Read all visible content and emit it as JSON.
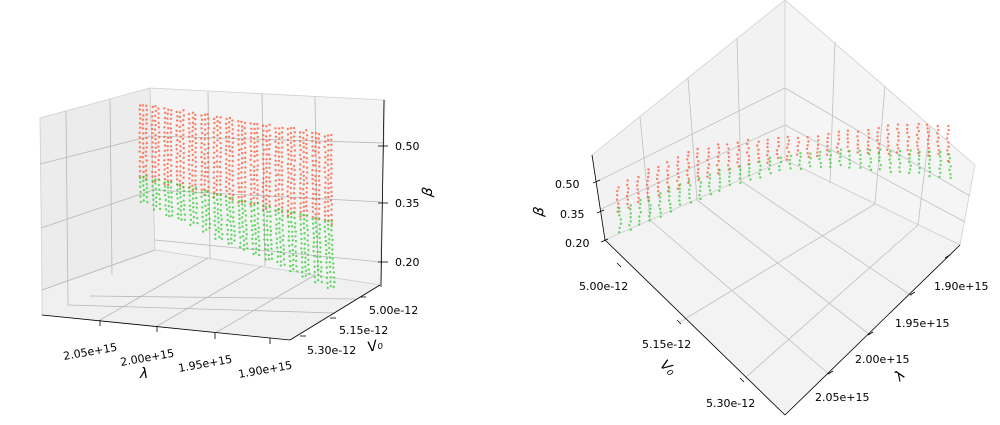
{
  "chart_data": [
    {
      "type": "scatter",
      "projection": "3d",
      "view": "elevation ~15deg, azimuth ~-20deg",
      "xlabel": "λ",
      "ylabel": "V₀",
      "zlabel": "β",
      "x_ticks": [
        "2.05e+15",
        "2.00e+15",
        "1.95e+15",
        "1.90e+15"
      ],
      "y_ticks": [
        "5.00e-12",
        "5.15e-12",
        "5.30e-12"
      ],
      "z_ticks": [
        "0.50",
        "0.35",
        "0.20"
      ],
      "xlim": [
        1870000000000000.0,
        2080000000000000.0
      ],
      "ylim": [
        4.95e-12,
        5.35e-12
      ],
      "zlim": [
        0.17,
        0.58
      ],
      "grid": true,
      "series": [
        {
          "color": "#ff5533",
          "description": "upper cloud, β above ~0.3",
          "x_range": [
            1900000000000000.0,
            2070000000000000.0
          ],
          "y_range": [
            4.98e-12,
            5.32e-12
          ],
          "z_range": [
            0.3,
            0.56
          ]
        },
        {
          "color": "#33cc33",
          "description": "lower cloud, β below ~0.35",
          "x_range": [
            1900000000000000.0,
            2050000000000000.0
          ],
          "y_range": [
            4.98e-12,
            5.32e-12
          ],
          "z_range": [
            0.18,
            0.36
          ]
        }
      ]
    },
    {
      "type": "scatter",
      "projection": "3d",
      "view": "elevation ~50deg, azimuth ~45deg",
      "xlabel": "λ",
      "ylabel": "V₀",
      "zlabel": "β",
      "x_ticks": [
        "1.90e+15",
        "1.95e+15",
        "2.00e+15",
        "2.05e+15"
      ],
      "y_ticks": [
        "5.00e-12",
        "5.15e-12",
        "5.30e-12"
      ],
      "z_ticks": [
        "0.50",
        "0.35",
        "0.20"
      ],
      "grid": true,
      "series": [
        {
          "color": "#ff5533",
          "description": "upper cloud"
        },
        {
          "color": "#33cc33",
          "description": "lower cloud"
        }
      ]
    }
  ]
}
